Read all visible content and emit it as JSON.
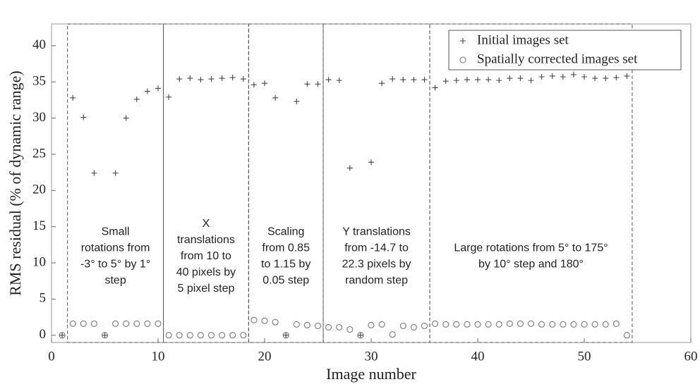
{
  "chart_data": {
    "type": "scatter",
    "xlabel": "Image number",
    "ylabel": "RMS residual (% of dynamic range)",
    "x": [
      1,
      2,
      3,
      4,
      5,
      6,
      7,
      8,
      9,
      10,
      11,
      12,
      13,
      14,
      15,
      16,
      17,
      18,
      19,
      20,
      21,
      22,
      23,
      24,
      25,
      26,
      27,
      28,
      29,
      30,
      31,
      32,
      33,
      34,
      35,
      36,
      37,
      38,
      39,
      40,
      41,
      42,
      43,
      44,
      45,
      46,
      47,
      48,
      49,
      50,
      51,
      52,
      53,
      54
    ],
    "series": [
      {
        "name": "Initial images set",
        "marker": "plus",
        "color": "#444444",
        "values": [
          0,
          32.8,
          30.1,
          22.4,
          0,
          22.4,
          30.0,
          32.6,
          33.7,
          34.1,
          32.9,
          35.4,
          35.5,
          35.3,
          35.4,
          35.5,
          35.6,
          35.4,
          34.6,
          34.8,
          32.8,
          0,
          32.3,
          34.7,
          34.7,
          35.3,
          35.2,
          23.1,
          0,
          23.9,
          34.8,
          35.4,
          35.3,
          35.3,
          35.3,
          34.2,
          35.1,
          35.2,
          35.3,
          35.3,
          35.3,
          35.2,
          35.5,
          35.5,
          35.2,
          35.7,
          35.8,
          35.7,
          36.0,
          35.7,
          35.5,
          35.5,
          35.6,
          35.8
        ]
      },
      {
        "name": "Spatially corrected images set",
        "marker": "circle",
        "color": "#777777",
        "values": [
          0,
          1.6,
          1.6,
          1.6,
          0,
          1.6,
          1.6,
          1.6,
          1.6,
          1.6,
          0,
          0,
          0,
          0,
          0,
          0,
          0,
          0,
          2.1,
          2.0,
          1.8,
          0,
          1.5,
          1.4,
          1.3,
          1.1,
          1.1,
          0.8,
          0,
          1.4,
          1.5,
          0.1,
          1.3,
          1.1,
          1.3,
          1.6,
          1.5,
          1.5,
          1.5,
          1.5,
          1.5,
          1.5,
          1.6,
          1.6,
          1.6,
          1.5,
          1.5,
          1.5,
          1.5,
          1.5,
          1.5,
          1.5,
          1.6,
          0
        ]
      }
    ],
    "regions": [
      {
        "x": [
          1.5,
          10.5
        ],
        "label": [
          "Small",
          "rotations from",
          "-3° to 5° by 1°",
          "step"
        ]
      },
      {
        "x": [
          10.5,
          18.5
        ],
        "label": [
          "X",
          "translations",
          "from 10 to",
          "40 pixels by",
          "5 pixel step"
        ]
      },
      {
        "x": [
          18.5,
          25.5
        ],
        "label": [
          "Scaling",
          "from 0.85",
          "to 1.15 by",
          "0.05 step"
        ]
      },
      {
        "x": [
          25.5,
          35.5
        ],
        "label": [
          "Y translations",
          "from -14.7 to",
          "22.3 pixels by",
          "random step"
        ]
      },
      {
        "x": [
          35.5,
          54.5
        ],
        "label": [
          "Large rotations from 5° to 175°",
          "by 10° step and 180°"
        ]
      }
    ],
    "xlim": [
      0,
      60
    ],
    "xticks": [
      0,
      10,
      20,
      30,
      40,
      50,
      60
    ],
    "ylim": [
      -1,
      43
    ],
    "yticks": [
      0,
      5,
      10,
      15,
      20,
      25,
      30,
      35,
      40
    ],
    "grid": false,
    "legend": "top-right"
  }
}
